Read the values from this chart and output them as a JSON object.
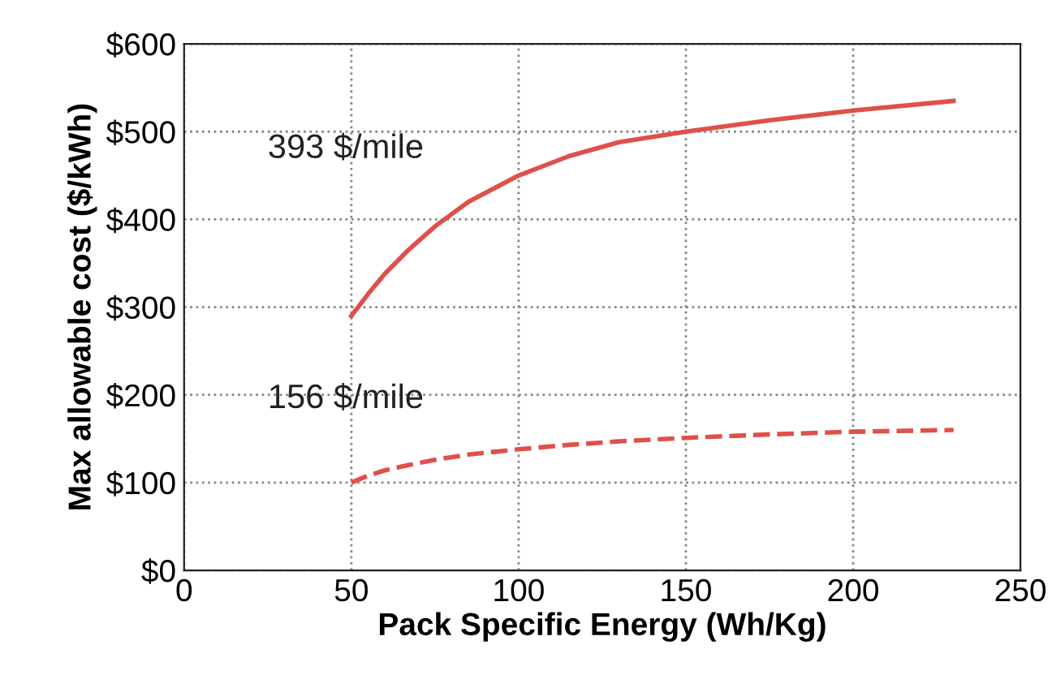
{
  "chart_data": {
    "type": "line",
    "xlabel": "Pack Specific Energy (Wh/Kg)",
    "ylabel": "Max allowable cost ($/kWh)",
    "xlim": [
      0,
      250
    ],
    "xticks": [
      0,
      50,
      100,
      150,
      200,
      250
    ],
    "ylim": [
      0,
      600
    ],
    "yticks": [
      {
        "value": 0,
        "label": "$0"
      },
      {
        "value": 100,
        "label": "$100"
      },
      {
        "value": 200,
        "label": "$200"
      },
      {
        "value": 300,
        "label": "$300"
      },
      {
        "value": 400,
        "label": "$400"
      },
      {
        "value": 500,
        "label": "$500"
      },
      {
        "value": 600,
        "label": "$600"
      }
    ],
    "grid": true,
    "marker": "none",
    "series": [
      {
        "name": "393 $/mile",
        "color": "#e0504a",
        "line_style": "solid",
        "x": [
          50,
          55,
          60,
          67,
          75,
          85,
          100,
          115,
          130,
          150,
          175,
          200,
          230
        ],
        "values": [
          290,
          315,
          338,
          365,
          392,
          420,
          450,
          472,
          488,
          500,
          513,
          524,
          535
        ]
      },
      {
        "name": "156 $/mile",
        "color": "#e0504a",
        "line_style": "dashed",
        "x": [
          50,
          55,
          60,
          67,
          75,
          85,
          100,
          115,
          130,
          150,
          175,
          200,
          230
        ],
        "values": [
          100,
          108,
          114,
          120,
          126,
          132,
          138,
          143,
          147,
          151,
          155,
          158,
          160
        ]
      }
    ]
  }
}
